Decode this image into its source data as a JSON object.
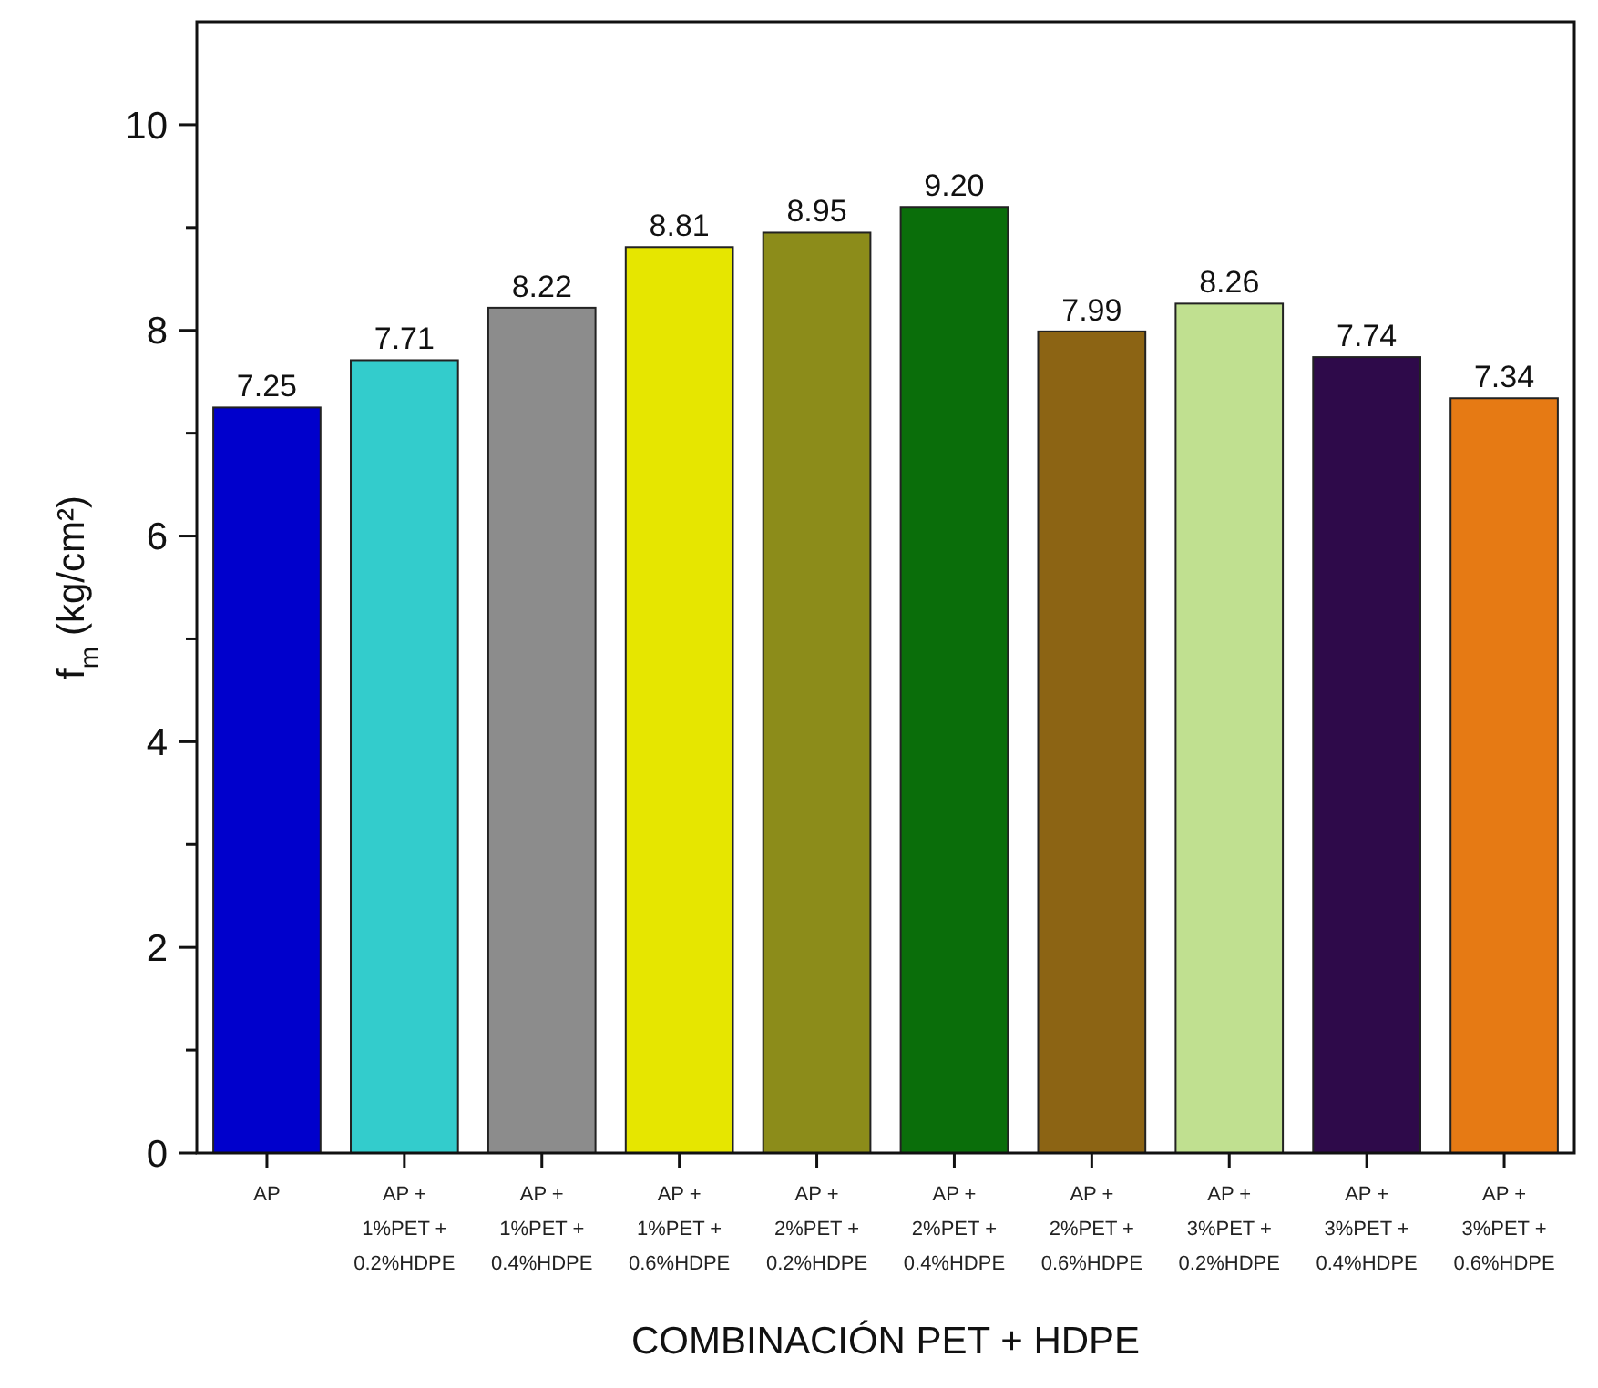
{
  "chart_data": {
    "type": "bar",
    "xlabel": "COMBINACIÓN PET + HDPE",
    "ylabel": "f$_{m}$ (kg/cm²)",
    "categories": [
      "AP",
      "AP + 1%PET + 0.2%HDPE",
      "AP + 1%PET + 0.4%HDPE",
      "AP + 1%PET + 0.6%HDPE",
      "AP + 2%PET + 0.2%HDPE",
      "AP + 2%PET + 0.4%HDPE",
      "AP + 2%PET + 0.6%HDPE",
      "AP + 3%PET + 0.2%HDPE",
      "AP + 3%PET + 0.4%HDPE",
      "AP + 3%PET + 0.6%HDPE"
    ],
    "values": [
      7.25,
      7.71,
      8.22,
      8.81,
      8.95,
      9.2,
      7.99,
      8.26,
      7.74,
      7.34
    ],
    "value_labels": [
      "7.25",
      "7.71",
      "8.22",
      "8.81",
      "8.95",
      "9.20",
      "7.99",
      "8.26",
      "7.74",
      "7.34"
    ],
    "colors": [
      "#0000cc",
      "#33cccc",
      "#8c8c8c",
      "#e6e600",
      "#8c8c1a",
      "#0a6e0a",
      "#8c6414",
      "#c0e090",
      "#2e0a4a",
      "#e67a14"
    ],
    "ylim": [
      0,
      11
    ],
    "yticks": [
      0,
      {
        "value": 1,
        "label": null
      },
      2,
      {
        "value": 3,
        "label": null
      },
      4,
      {
        "value": 5,
        "label": null
      },
      6,
      {
        "value": 7,
        "label": null
      },
      8,
      {
        "value": 9,
        "label": null
      },
      10
    ],
    "grid": false
  }
}
